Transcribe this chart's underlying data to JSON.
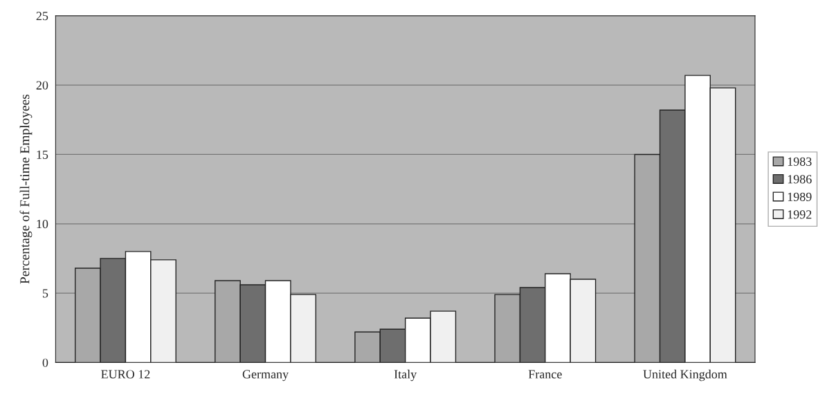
{
  "chart_data": {
    "type": "bar",
    "categories": [
      "EURO 12",
      "Germany",
      "Italy",
      "France",
      "United Kingdom"
    ],
    "series": [
      {
        "name": "1983",
        "color": "#a8a8a8",
        "values": [
          6.8,
          5.9,
          2.2,
          4.9,
          15.0
        ]
      },
      {
        "name": "1986",
        "color": "#6e6e6e",
        "values": [
          7.5,
          5.6,
          2.4,
          5.4,
          18.2
        ]
      },
      {
        "name": "1989",
        "color": "#ffffff",
        "values": [
          8.0,
          5.9,
          3.2,
          6.4,
          20.7
        ]
      },
      {
        "name": "1992",
        "color": "#f0f0f0",
        "values": [
          7.4,
          4.9,
          3.7,
          6.0,
          19.8
        ]
      }
    ],
    "ylabel": "Percentage of Full-time Employees",
    "ylim": [
      0,
      25
    ],
    "yticks": [
      0,
      5,
      10,
      15,
      20,
      25
    ],
    "grid": "y",
    "legend": "right"
  }
}
